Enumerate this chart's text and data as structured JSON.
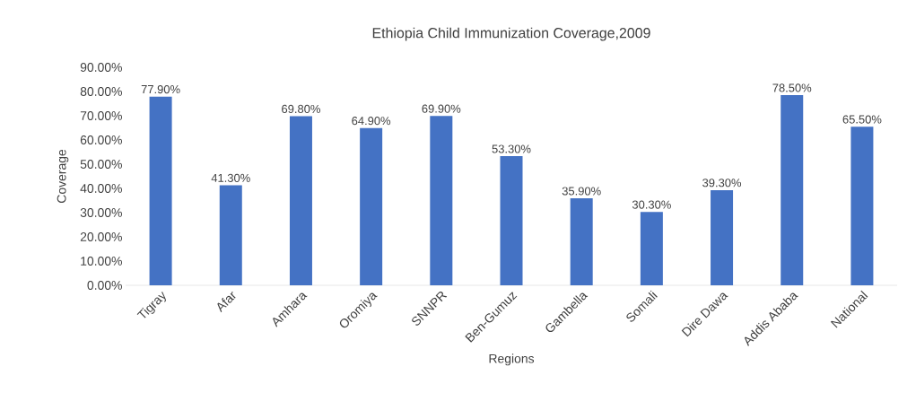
{
  "chart_data": {
    "type": "bar",
    "title": "Ethiopia Child Immunization Coverage,2009",
    "xlabel": "Regions",
    "ylabel": "Coverage",
    "categories": [
      "Tigray",
      "Afar",
      "Amhara",
      "Oromiya",
      "SNNPR",
      "Ben-Gumuz",
      "Gambella",
      "Somali",
      "Dire Dawa",
      "Addis Ababa",
      "National"
    ],
    "values": [
      77.9,
      41.3,
      69.8,
      64.9,
      69.9,
      53.3,
      35.9,
      30.3,
      39.3,
      78.5,
      65.5
    ],
    "value_labels": [
      "77.90%",
      "41.30%",
      "69.80%",
      "64.90%",
      "69.90%",
      "53.30%",
      "35.90%",
      "30.30%",
      "39.30%",
      "78.50%",
      "65.50%"
    ],
    "color": "#4472c4",
    "ylim": [
      0,
      90
    ],
    "yticks": [
      {
        "value": 0,
        "label": "0.00%"
      },
      {
        "value": 10,
        "label": "10.00%"
      },
      {
        "value": 20,
        "label": "20.00%"
      },
      {
        "value": 30,
        "label": "30.00%"
      },
      {
        "value": 40,
        "label": "40.00%"
      },
      {
        "value": 50,
        "label": "50.00%"
      },
      {
        "value": 60,
        "label": "60.00%"
      },
      {
        "value": 70,
        "label": "70.00%"
      },
      {
        "value": 80,
        "label": "80.00%"
      },
      {
        "value": 90,
        "label": "90.00%"
      }
    ],
    "grid": false
  }
}
